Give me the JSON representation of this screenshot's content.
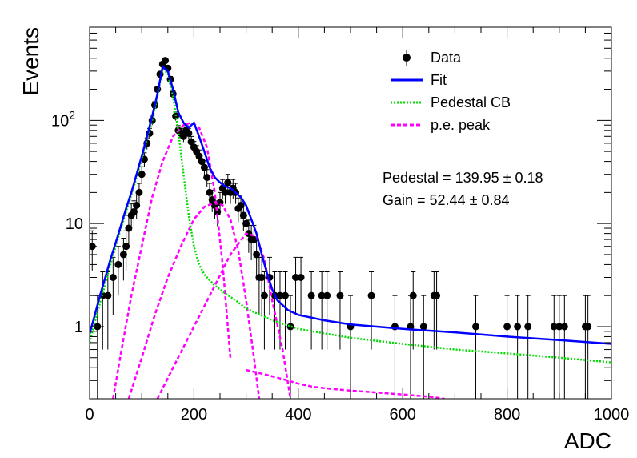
{
  "chart_data": {
    "type": "scatter",
    "title": "",
    "xlabel": "ADC",
    "ylabel": "Events",
    "xlim": [
      0,
      1000
    ],
    "ylim": [
      0.2,
      800
    ],
    "yscale": "log",
    "x_ticks": [
      "0",
      "200",
      "400",
      "600",
      "800",
      "1000"
    ],
    "y_ticks": [
      {
        "value": 1,
        "label": "1"
      },
      {
        "value": 10,
        "label": "10"
      },
      {
        "value": 100,
        "label": "10",
        "sup": "2"
      }
    ],
    "grid": false,
    "legend_position": "top-right",
    "legend": [
      {
        "label": "Data",
        "style": "marker",
        "color": "#000000"
      },
      {
        "label": "Fit",
        "style": "line",
        "color": "#0000ff"
      },
      {
        "label": "Pedestal CB",
        "style": "dotted",
        "color": "#00dd00"
      },
      {
        "label": "p.e. peak",
        "style": "dashed",
        "color": "#ff00ff"
      }
    ],
    "annotations": [
      "Pedestal = 139.95 ± 0.18",
      "Gain = 52.44 ± 0.84"
    ],
    "series": [
      {
        "name": "Data",
        "style": "points",
        "color": "#000000",
        "x": [
          5,
          15,
          25,
          35,
          45,
          55,
          65,
          70,
          75,
          80,
          85,
          90,
          95,
          100,
          105,
          110,
          115,
          120,
          125,
          130,
          135,
          140,
          145,
          150,
          155,
          160,
          165,
          170,
          175,
          180,
          185,
          190,
          195,
          200,
          205,
          210,
          215,
          220,
          225,
          230,
          235,
          240,
          245,
          250,
          255,
          260,
          265,
          270,
          275,
          280,
          285,
          290,
          295,
          300,
          305,
          310,
          315,
          320,
          325,
          330,
          335,
          345,
          355,
          365,
          375,
          385,
          395,
          405,
          425,
          445,
          455,
          480,
          500,
          540,
          585,
          615,
          620,
          640,
          660,
          665,
          740,
          800,
          820,
          840,
          890,
          900,
          910,
          950,
          955
        ],
        "y": [
          6,
          1,
          2,
          2,
          3,
          4,
          5,
          6,
          9,
          12,
          13,
          15,
          20,
          30,
          42,
          60,
          75,
          100,
          140,
          200,
          280,
          350,
          380,
          320,
          250,
          180,
          110,
          80,
          75,
          70,
          80,
          75,
          62,
          55,
          50,
          45,
          40,
          35,
          28,
          20,
          17,
          15,
          13,
          16,
          22,
          20,
          25,
          20,
          22,
          20,
          14,
          15,
          12,
          10,
          8,
          7,
          7,
          5,
          3,
          3,
          2,
          3,
          2,
          2,
          2,
          1,
          3,
          3,
          2,
          2,
          2,
          2,
          1,
          2,
          1,
          1,
          2,
          1,
          2,
          2,
          1,
          1,
          1,
          1,
          1,
          1,
          1,
          1,
          1
        ],
        "yerr": [
          2.5,
          1,
          1.4,
          1.4,
          1.7,
          2,
          2.2,
          2.5,
          3,
          3.5,
          3.6,
          3.9,
          4.5,
          5.5,
          6.5,
          7.7,
          8.7,
          10,
          12,
          14,
          17,
          19,
          19.5,
          18,
          16,
          13,
          10.5,
          9,
          8.7,
          8.4,
          9,
          8.7,
          7.9,
          7.4,
          7,
          6.7,
          6.3,
          5.9,
          5.3,
          4.5,
          4.1,
          3.9,
          3.6,
          4,
          4.7,
          4.5,
          5,
          4.5,
          4.7,
          4.5,
          3.7,
          3.9,
          3.5,
          3.2,
          2.8,
          2.6,
          2.6,
          2.2,
          1.7,
          1.7,
          1.4,
          1.7,
          1.4,
          1.4,
          1.4,
          1,
          1.7,
          1.7,
          1.4,
          1.4,
          1.4,
          1.4,
          1,
          1.4,
          1,
          1,
          1.4,
          1,
          1.4,
          1.4,
          1,
          1,
          1,
          1,
          1,
          1,
          1,
          1,
          1
        ]
      },
      {
        "name": "Fit",
        "style": "line",
        "color": "#0000ff",
        "x": [
          0,
          10,
          20,
          30,
          40,
          50,
          60,
          70,
          80,
          90,
          100,
          110,
          120,
          130,
          140,
          150,
          160,
          170,
          180,
          190,
          200,
          210,
          220,
          230,
          240,
          250,
          260,
          270,
          280,
          290,
          300,
          310,
          320,
          330,
          340,
          350,
          360,
          380,
          400,
          450,
          500,
          600,
          700,
          800,
          900,
          1000
        ],
        "y": [
          0.85,
          1.3,
          2,
          3,
          4.5,
          6.5,
          9.5,
          14,
          20,
          30,
          45,
          70,
          110,
          180,
          330,
          300,
          200,
          120,
          95,
          85,
          95,
          70,
          50,
          35,
          28,
          25,
          23,
          22,
          20,
          18,
          15,
          11,
          8,
          5,
          3.3,
          2.3,
          1.8,
          1.45,
          1.3,
          1.15,
          1.05,
          0.95,
          0.88,
          0.8,
          0.74,
          0.68
        ]
      },
      {
        "name": "Pedestal CB",
        "style": "dotted",
        "color": "#00dd00",
        "x": [
          0,
          10,
          20,
          30,
          40,
          50,
          60,
          70,
          80,
          90,
          100,
          110,
          120,
          130,
          140,
          150,
          160,
          170,
          180,
          190,
          200,
          210,
          220,
          240,
          260,
          280,
          300,
          350,
          400,
          500,
          600,
          700,
          800,
          900,
          1000
        ],
        "y": [
          0.7,
          1.1,
          1.7,
          2.6,
          4,
          6,
          9,
          13,
          19,
          28,
          42,
          65,
          100,
          170,
          320,
          280,
          170,
          80,
          30,
          12,
          6,
          4,
          3.2,
          2.5,
          2.1,
          1.8,
          1.5,
          1.15,
          0.95,
          0.78,
          0.68,
          0.6,
          0.55,
          0.5,
          0.45
        ]
      },
      {
        "name": "p.e. peak 1",
        "style": "dashed",
        "color": "#ff00ff",
        "x": [
          45,
          60,
          80,
          100,
          120,
          140,
          160,
          180,
          195,
          210,
          225,
          240,
          255,
          270
        ],
        "y": [
          0.2,
          0.55,
          2,
          6,
          18,
          40,
          70,
          90,
          95,
          85,
          55,
          20,
          4,
          0.5
        ]
      },
      {
        "name": "p.e. peak 2",
        "style": "dashed",
        "color": "#ff00ff",
        "x": [
          75,
          100,
          125,
          150,
          175,
          200,
          220,
          240,
          255,
          270,
          285,
          300,
          315,
          325
        ],
        "y": [
          0.2,
          0.5,
          1.3,
          3,
          6,
          11,
          14.5,
          16,
          15,
          11,
          5.5,
          1.8,
          0.5,
          0.2
        ]
      },
      {
        "name": "p.e. peak 3",
        "style": "dashed",
        "color": "#ff00ff",
        "x": [
          130,
          160,
          200,
          240,
          270,
          300,
          320,
          335,
          350,
          370,
          385
        ],
        "y": [
          0.2,
          0.4,
          1,
          2.5,
          5,
          8,
          7.5,
          4.5,
          1.8,
          0.6,
          0.2
        ]
      },
      {
        "name": "p.e. tail",
        "style": "dashed",
        "color": "#ff00ff",
        "x": [
          300,
          320,
          340,
          360,
          380,
          400,
          430,
          460,
          500,
          550,
          600,
          650,
          680
        ],
        "y": [
          0.38,
          0.36,
          0.34,
          0.32,
          0.3,
          0.28,
          0.26,
          0.25,
          0.24,
          0.23,
          0.22,
          0.21,
          0.2
        ]
      }
    ]
  }
}
